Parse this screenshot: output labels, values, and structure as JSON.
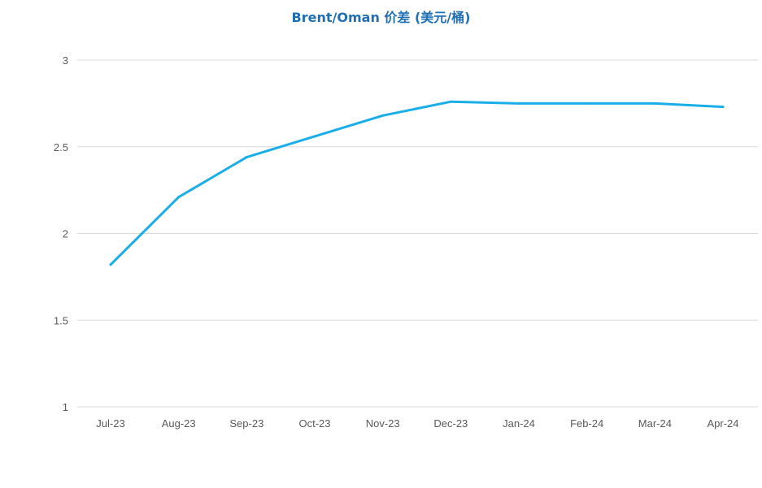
{
  "chart_data": {
    "type": "line",
    "title": "Brent/Oman 价差 (美元/桶)",
    "xlabel": "",
    "ylabel": "",
    "categories": [
      "Jul-23",
      "Aug-23",
      "Sep-23",
      "Oct-23",
      "Nov-23",
      "Dec-23",
      "Jan-24",
      "Feb-24",
      "Mar-24",
      "Apr-24"
    ],
    "series": [
      {
        "values": [
          1.82,
          2.21,
          2.44,
          2.56,
          2.68,
          2.76,
          2.75,
          2.75,
          2.75,
          2.73
        ]
      }
    ],
    "ylim": [
      1,
      3
    ],
    "yticks": [
      "1",
      "1.5",
      "2",
      "2.5",
      "3"
    ],
    "ytick_values": [
      1,
      1.5,
      2,
      2.5,
      3
    ],
    "grid": true,
    "legend": "none",
    "colors": {
      "line": "#1aaee8",
      "grid": "#d9d9d9",
      "title": "#1f6fb5",
      "tick": "#595959"
    }
  }
}
